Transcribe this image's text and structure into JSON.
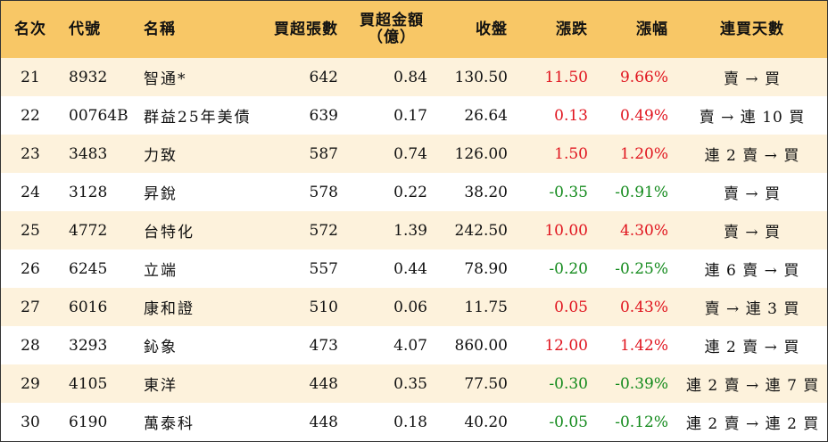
{
  "colors": {
    "header_bg": "#f8c766",
    "row_alt_bg": "#fdf2dc",
    "up": "#e0141e",
    "down": "#138a1c"
  },
  "headers": {
    "rank": "名次",
    "code": "代號",
    "name": "名稱",
    "net_buy_lots": "買超張數",
    "net_buy_amount_line1": "買超金額",
    "net_buy_amount_line2": "（億）",
    "close": "收盤",
    "change": "漲跌",
    "change_pct": "漲幅",
    "streak": "連買天數"
  },
  "rows": [
    {
      "rank": "21",
      "code": "8932",
      "name": "智通*",
      "lots": "642",
      "amount": "0.84",
      "close": "130.50",
      "change": "11.50",
      "pct": "9.66%",
      "dir": "up",
      "streak": "賣 → 買"
    },
    {
      "rank": "22",
      "code": "00764B",
      "name": "群益25年美債",
      "lots": "639",
      "amount": "0.17",
      "close": "26.64",
      "change": "0.13",
      "pct": "0.49%",
      "dir": "up",
      "streak": "賣 → 連 10 買"
    },
    {
      "rank": "23",
      "code": "3483",
      "name": "力致",
      "lots": "587",
      "amount": "0.74",
      "close": "126.00",
      "change": "1.50",
      "pct": "1.20%",
      "dir": "up",
      "streak": "連 2 賣 → 買"
    },
    {
      "rank": "24",
      "code": "3128",
      "name": "昇銳",
      "lots": "578",
      "amount": "0.22",
      "close": "38.20",
      "change": "-0.35",
      "pct": "-0.91%",
      "dir": "down",
      "streak": "賣 → 買"
    },
    {
      "rank": "25",
      "code": "4772",
      "name": "台特化",
      "lots": "572",
      "amount": "1.39",
      "close": "242.50",
      "change": "10.00",
      "pct": "4.30%",
      "dir": "up",
      "streak": "賣 → 買"
    },
    {
      "rank": "26",
      "code": "6245",
      "name": "立端",
      "lots": "557",
      "amount": "0.44",
      "close": "78.90",
      "change": "-0.20",
      "pct": "-0.25%",
      "dir": "down",
      "streak": "連 6 賣 → 買"
    },
    {
      "rank": "27",
      "code": "6016",
      "name": "康和證",
      "lots": "510",
      "amount": "0.06",
      "close": "11.75",
      "change": "0.05",
      "pct": "0.43%",
      "dir": "up",
      "streak": "賣 → 連 3 買"
    },
    {
      "rank": "28",
      "code": "3293",
      "name": "鈊象",
      "lots": "473",
      "amount": "4.07",
      "close": "860.00",
      "change": "12.00",
      "pct": "1.42%",
      "dir": "up",
      "streak": "連 2 賣 → 買"
    },
    {
      "rank": "29",
      "code": "4105",
      "name": "東洋",
      "lots": "448",
      "amount": "0.35",
      "close": "77.50",
      "change": "-0.30",
      "pct": "-0.39%",
      "dir": "down",
      "streak": "連 2 賣 → 連 7 買"
    },
    {
      "rank": "30",
      "code": "6190",
      "name": "萬泰科",
      "lots": "448",
      "amount": "0.18",
      "close": "40.20",
      "change": "-0.05",
      "pct": "-0.12%",
      "dir": "down",
      "streak": "連 2 賣 → 連 2 買"
    }
  ]
}
